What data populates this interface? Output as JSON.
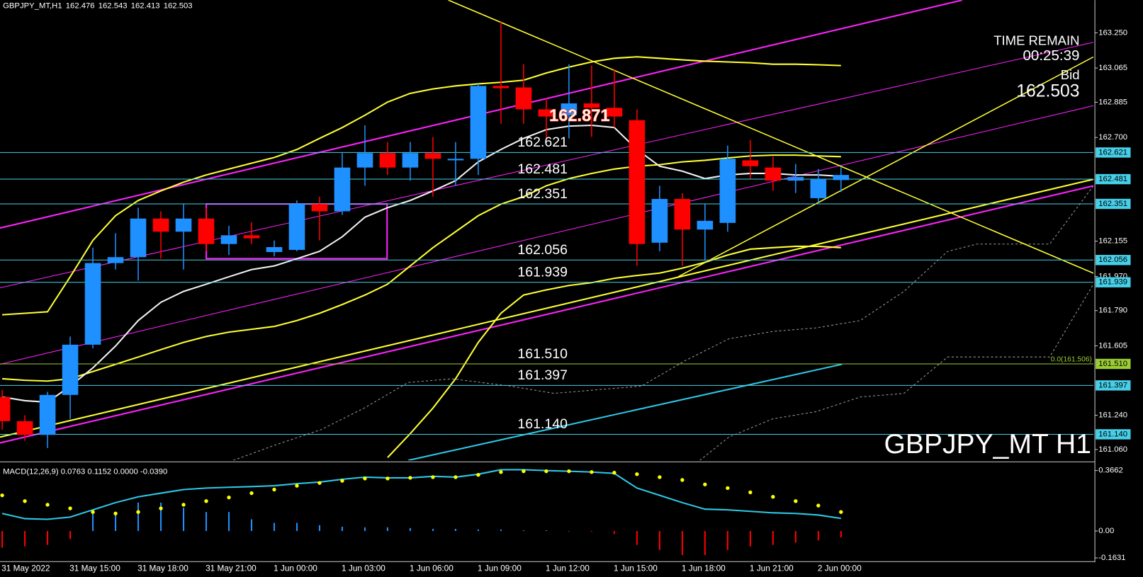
{
  "chart_data": [
    {
      "type": "candlestick",
      "symbol": "GBPJPY_MT,H1",
      "watermark": "GBPJPY_MT H1",
      "categories": [
        null,
        "31 May 2022",
        null,
        null,
        "31 May 15:00",
        null,
        null,
        "31 May 18:00",
        null,
        null,
        "31 May 21:00",
        null,
        null,
        "1 Jun 00:00",
        null,
        null,
        "1 Jun 03:00",
        null,
        null,
        "1 Jun 06:00",
        null,
        null,
        "1 Jun 09:00",
        null,
        null,
        "1 Jun 12:00",
        null,
        null,
        "1 Jun 15:00",
        null,
        null,
        "1 Jun 18:00",
        null,
        null,
        "1 Jun 21:00",
        null,
        null,
        "2 Jun 00:00"
      ],
      "open": [
        161.336,
        161.209,
        161.137,
        161.347,
        161.611,
        162.04,
        162.071,
        162.274,
        162.205,
        162.274,
        162.14,
        162.186,
        162.098,
        162.109,
        162.35,
        162.312,
        162.542,
        162.618,
        162.542,
        162.618,
        162.58,
        162.588,
        162.971,
        162.963,
        162.848,
        162.817,
        162.879,
        162.856,
        162.791,
        162.147,
        162.377,
        162.216,
        162.251,
        162.58,
        162.542,
        162.473,
        162.381,
        162.476
      ],
      "high": [
        161.374,
        161.24,
        161.363,
        161.654,
        162.121,
        162.197,
        162.331,
        162.312,
        162.35,
        162.331,
        162.236,
        162.255,
        162.159,
        162.369,
        162.389,
        162.618,
        162.764,
        162.676,
        162.676,
        162.703,
        162.676,
        162.982,
        163.307,
        163.085,
        162.906,
        163.085,
        163.078,
        163.059,
        162.848,
        162.446,
        162.408,
        162.35,
        162.657,
        162.687,
        162.599,
        162.561,
        162.534,
        162.543
      ],
      "low": [
        161.164,
        161.106,
        161.068,
        161.221,
        161.592,
        162.006,
        161.948,
        162.063,
        162.006,
        162.102,
        162.082,
        162.14,
        162.075,
        162.102,
        162.159,
        162.293,
        162.446,
        162.503,
        162.473,
        162.389,
        162.446,
        162.503,
        162.772,
        162.772,
        162.695,
        162.695,
        162.703,
        162.752,
        162.025,
        162.102,
        162.025,
        162.052,
        162.205,
        162.484,
        162.419,
        162.408,
        162.358,
        162.413
      ],
      "close": [
        161.209,
        161.137,
        161.347,
        161.611,
        162.04,
        162.071,
        162.274,
        162.205,
        162.274,
        162.14,
        162.186,
        162.17,
        162.124,
        162.35,
        162.312,
        162.542,
        162.618,
        162.542,
        162.618,
        162.588,
        162.588,
        162.971,
        162.959,
        162.848,
        162.81,
        162.879,
        162.856,
        162.81,
        162.14,
        162.377,
        162.216,
        162.262,
        162.588,
        162.549,
        162.473,
        162.492,
        162.481,
        162.503
      ],
      "up_color": "#1e90ff",
      "down_color": "#ff0000",
      "overlays": [
        {
          "color": "#ffff33",
          "values": [
            161.768,
            161.776,
            161.784,
            161.968,
            162.159,
            162.289,
            162.369,
            162.419,
            162.465,
            162.503,
            162.534,
            162.565,
            162.595,
            162.637,
            162.695,
            162.752,
            162.817,
            162.886,
            162.932,
            162.955,
            162.971,
            162.982,
            162.99,
            163.001,
            163.039,
            163.07,
            163.097,
            163.116,
            163.124,
            163.116,
            163.108,
            163.101,
            163.097,
            163.093,
            163.085,
            163.085,
            163.082,
            163.078
          ]
        },
        {
          "color": "#ffff33",
          "values": [
            161.432,
            161.424,
            161.42,
            161.432,
            161.47,
            161.508,
            161.546,
            161.585,
            161.623,
            161.654,
            161.677,
            161.692,
            161.707,
            161.738,
            161.776,
            161.822,
            161.872,
            161.929,
            162.025,
            162.121,
            162.205,
            162.289,
            162.35,
            162.389,
            162.446,
            162.484,
            162.511,
            162.534,
            162.549,
            162.557,
            162.572,
            162.58,
            162.592,
            162.603,
            162.607,
            162.607,
            162.603,
            162.599
          ]
        },
        {
          "color": "#ffff33",
          "values": [
            null,
            null,
            null,
            null,
            null,
            null,
            null,
            null,
            null,
            null,
            null,
            null,
            null,
            null,
            null,
            null,
            null,
            161.018,
            161.144,
            161.278,
            161.432,
            161.623,
            161.776,
            161.872,
            161.899,
            161.922,
            161.937,
            161.96,
            161.975,
            161.987,
            162.013,
            162.044,
            162.082,
            162.113,
            162.121,
            162.128,
            162.128,
            162.121
          ]
        },
        {
          "color": "#f2f2f2",
          "values": [
            161.336,
            161.317,
            161.309,
            161.393,
            161.489,
            161.604,
            161.738,
            161.834,
            161.891,
            161.929,
            161.968,
            162.006,
            162.025,
            162.063,
            162.102,
            162.178,
            162.281,
            162.331,
            162.369,
            162.419,
            162.473,
            162.572,
            162.637,
            162.695,
            162.741,
            162.76,
            162.764,
            162.752,
            162.637,
            162.549,
            162.523,
            162.484,
            162.503,
            162.511,
            162.511,
            162.503,
            162.503,
            162.496
          ]
        }
      ],
      "levels": [
        {
          "value": 162.621,
          "color": "#46cfe8"
        },
        {
          "value": 162.481,
          "color": "#46cfe8"
        },
        {
          "value": 162.351,
          "color": "#46cfe8"
        },
        {
          "value": 162.056,
          "color": "#46cfe8"
        },
        {
          "value": 161.939,
          "color": "#46cfe8"
        },
        {
          "value": 161.51,
          "label": "161.510",
          "color": "#9acd32"
        },
        {
          "value": 161.397,
          "color": "#46cfe8"
        },
        {
          "value": 161.14,
          "label": "161.140",
          "color": "#46cfe8"
        }
      ],
      "annotation": 162.871,
      "fib_label": "0.0(161.506)",
      "ylim": [
        161.003,
        163.422
      ],
      "yticks": [
        {
          "value": 163.25,
          "label": "163.250"
        },
        163.065,
        162.885,
        {
          "value": 162.7,
          "label": "162.700"
        },
        162.155,
        {
          "value": 161.97,
          "label": "161.970"
        },
        {
          "value": 161.79,
          "label": "161.790"
        },
        161.605,
        {
          "value": 161.24,
          "label": "161.240"
        },
        {
          "value": 161.06,
          "label": "161.060"
        }
      ]
    },
    {
      "type": "macd",
      "title": "MACD(12,26,9) 0.0763 0.1152 0.0000 -0.0390",
      "histogram": [
        -0.101,
        -0.093,
        -0.084,
        -0.049,
        0.128,
        0.106,
        0.172,
        0.172,
        0.141,
        0.115,
        0.115,
        0.071,
        0.049,
        0.049,
        0.035,
        0.026,
        0.022,
        0.022,
        0.018,
        0.013,
        0.013,
        0.009,
        0.009,
        0.004,
        0.004,
        0,
        -0.004,
        -0.018,
        -0.084,
        -0.115,
        -0.146,
        -0.146,
        -0.115,
        -0.093,
        -0.084,
        -0.071,
        -0.057,
        -0.039
      ],
      "line": {
        "color": "#2ec8e6",
        "values": [
          0.106,
          0.075,
          0.071,
          0.084,
          0.128,
          0.172,
          0.207,
          0.229,
          0.251,
          0.26,
          0.265,
          0.269,
          0.274,
          0.287,
          0.296,
          0.313,
          0.326,
          0.322,
          0.322,
          0.331,
          0.326,
          0.344,
          0.371,
          0.371,
          0.366,
          0.362,
          0.357,
          0.349,
          0.26,
          0.216,
          0.172,
          0.132,
          0.128,
          0.119,
          0.11,
          0.106,
          0.097,
          0.076
        ]
      },
      "signal": {
        "color": "#ffff00",
        "values": [
          0.216,
          0.181,
          0.159,
          0.137,
          0.115,
          0.106,
          0.115,
          0.137,
          0.159,
          0.181,
          0.203,
          0.229,
          0.251,
          0.274,
          0.291,
          0.304,
          0.318,
          0.318,
          0.322,
          0.326,
          0.326,
          0.34,
          0.357,
          0.362,
          0.362,
          0.362,
          0.357,
          0.353,
          0.344,
          0.326,
          0.309,
          0.282,
          0.26,
          0.234,
          0.207,
          0.181,
          0.154,
          0.115
        ]
      },
      "up_color": "#1e90ff",
      "down_color": "#ff0000",
      "ylim": [
        -0.181,
        0.41
      ],
      "yticks": [
        0.3662,
        {
          "value": 0,
          "label": "0.00"
        },
        -0.1631
      ]
    }
  ],
  "info": {
    "time_remain_label": "TIME REMAIN",
    "time_remain": "00:25:39",
    "bid_label": "Bid",
    "bid": 162.503
  }
}
